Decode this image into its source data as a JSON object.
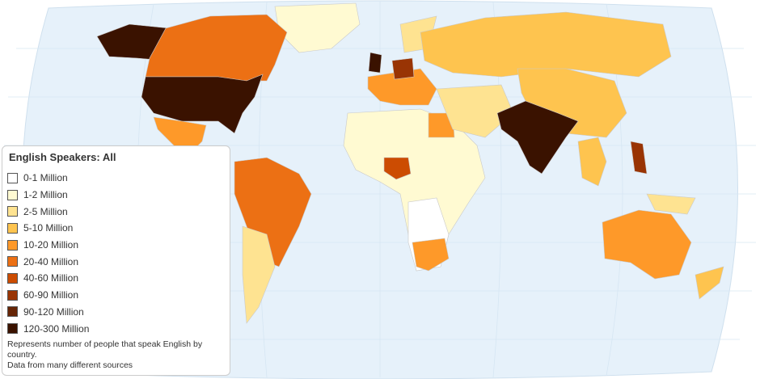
{
  "legend": {
    "title": "English Speakers: All",
    "items": [
      {
        "label": "0-1 Million",
        "color": "#ffffff"
      },
      {
        "label": "1-2 Million",
        "color": "#fffad2"
      },
      {
        "label": "2-5 Million",
        "color": "#fee391"
      },
      {
        "label": "5-10 Million",
        "color": "#fec44f"
      },
      {
        "label": "10-20 Million",
        "color": "#fe9929"
      },
      {
        "label": "20-40 Million",
        "color": "#ec7014"
      },
      {
        "label": "40-60 Million",
        "color": "#cc4c02"
      },
      {
        "label": "60-90 Million",
        "color": "#993404"
      },
      {
        "label": "90-120 Million",
        "color": "#662506"
      },
      {
        "label": "120-300 Million",
        "color": "#3a1200"
      }
    ],
    "notes": [
      "Represents number of people that speak English by country.",
      "Data from many different sources"
    ]
  }
}
